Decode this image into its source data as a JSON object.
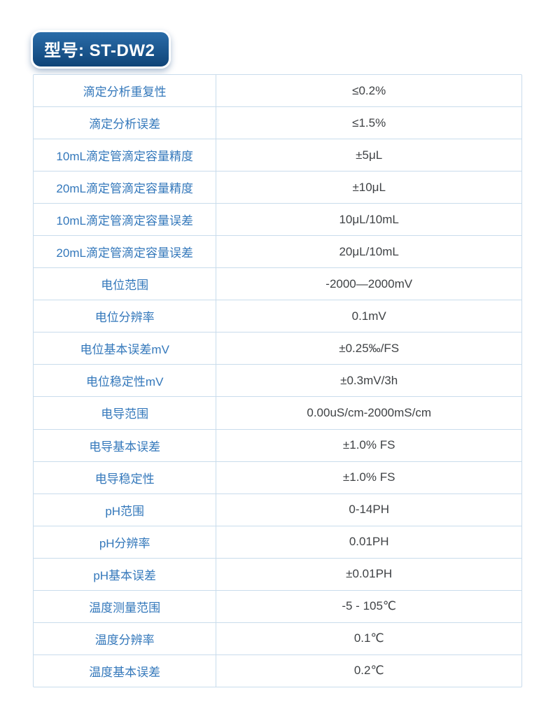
{
  "badge": {
    "label": "型号: ST-DW2"
  },
  "colors": {
    "label_blue": "#3478bb",
    "value_gray": "#3f4245",
    "table_border": "#c9dcec",
    "badge_gradient_top": "#2a6ca8",
    "badge_gradient_bottom": "#0f4478"
  },
  "table": {
    "rows": [
      {
        "label": "滴定分析重复性",
        "value": "≤0.2%"
      },
      {
        "label": "滴定分析误差",
        "value": "≤1.5%"
      },
      {
        "label": "10mL滴定管滴定容量精度",
        "value": "±5μL"
      },
      {
        "label": "20mL滴定管滴定容量精度",
        "value": "±10μL"
      },
      {
        "label": "10mL滴定管滴定容量误差",
        "value": "10μL/10mL"
      },
      {
        "label": "20mL滴定管滴定容量误差",
        "value": "20μL/10mL"
      },
      {
        "label": "电位范围",
        "value": "-2000—2000mV"
      },
      {
        "label": "电位分辨率",
        "value": "0.1mV"
      },
      {
        "label": "电位基本误差mV",
        "value": "±0.25‰/FS"
      },
      {
        "label": "电位稳定性mV",
        "value": "±0.3mV/3h"
      },
      {
        "label": "电导范围",
        "value": "0.00uS/cm-2000mS/cm"
      },
      {
        "label": "电导基本误差",
        "value": "±1.0% FS"
      },
      {
        "label": "电导稳定性",
        "value": "±1.0% FS"
      },
      {
        "label": "pH范围",
        "value": "0-14PH"
      },
      {
        "label": "pH分辨率",
        "value": "0.01PH"
      },
      {
        "label": "pH基本误差",
        "value": "±0.01PH"
      },
      {
        "label": "温度测量范围",
        "value": "-5 - 105℃"
      },
      {
        "label": "温度分辨率",
        "value": "0.1℃"
      },
      {
        "label": "温度基本误差",
        "value": "0.2℃"
      }
    ]
  }
}
